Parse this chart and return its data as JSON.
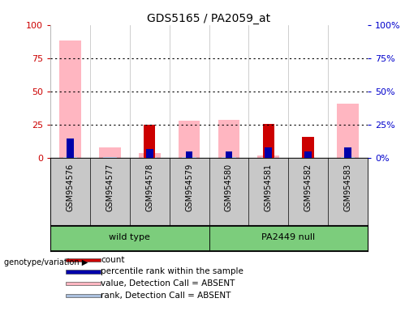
{
  "title": "GDS5165 / PA2059_at",
  "samples": [
    "GSM954576",
    "GSM954577",
    "GSM954578",
    "GSM954579",
    "GSM954580",
    "GSM954581",
    "GSM954582",
    "GSM954583"
  ],
  "groups": [
    {
      "label": "wild type",
      "indices": [
        0,
        1,
        2,
        3
      ],
      "color": "#7CCD7C"
    },
    {
      "label": "PA2449 null",
      "indices": [
        4,
        5,
        6,
        7
      ],
      "color": "#7CCD7C"
    }
  ],
  "count": [
    0,
    0,
    25,
    0,
    0,
    26,
    16,
    0
  ],
  "percentile_rank": [
    15,
    0,
    7,
    5,
    5,
    8,
    5,
    8
  ],
  "value_absent": [
    88,
    8,
    4,
    28,
    29,
    2,
    0,
    41
  ],
  "rank_absent": [
    1,
    1,
    1,
    1,
    1,
    1,
    1,
    1
  ],
  "colors": {
    "count": "#CC0000",
    "percentile_rank": "#0000AA",
    "value_absent": "#FFB6C1",
    "rank_absent": "#AABFDD",
    "bg_chart": "#FFFFFF",
    "bg_samples": "#C8C8C8",
    "group_green": "#7CCD7C",
    "left_axis": "#CC0000",
    "right_axis": "#0000CC",
    "grid_line": "#000000"
  },
  "ylim": [
    0,
    100
  ],
  "yticks": [
    0,
    25,
    50,
    75,
    100
  ],
  "genotype_label": "genotype/variation",
  "legend_items": [
    {
      "label": "count",
      "color": "#CC0000"
    },
    {
      "label": "percentile rank within the sample",
      "color": "#0000AA"
    },
    {
      "label": "value, Detection Call = ABSENT",
      "color": "#FFB6C1"
    },
    {
      "label": "rank, Detection Call = ABSENT",
      "color": "#AABFDD"
    }
  ]
}
